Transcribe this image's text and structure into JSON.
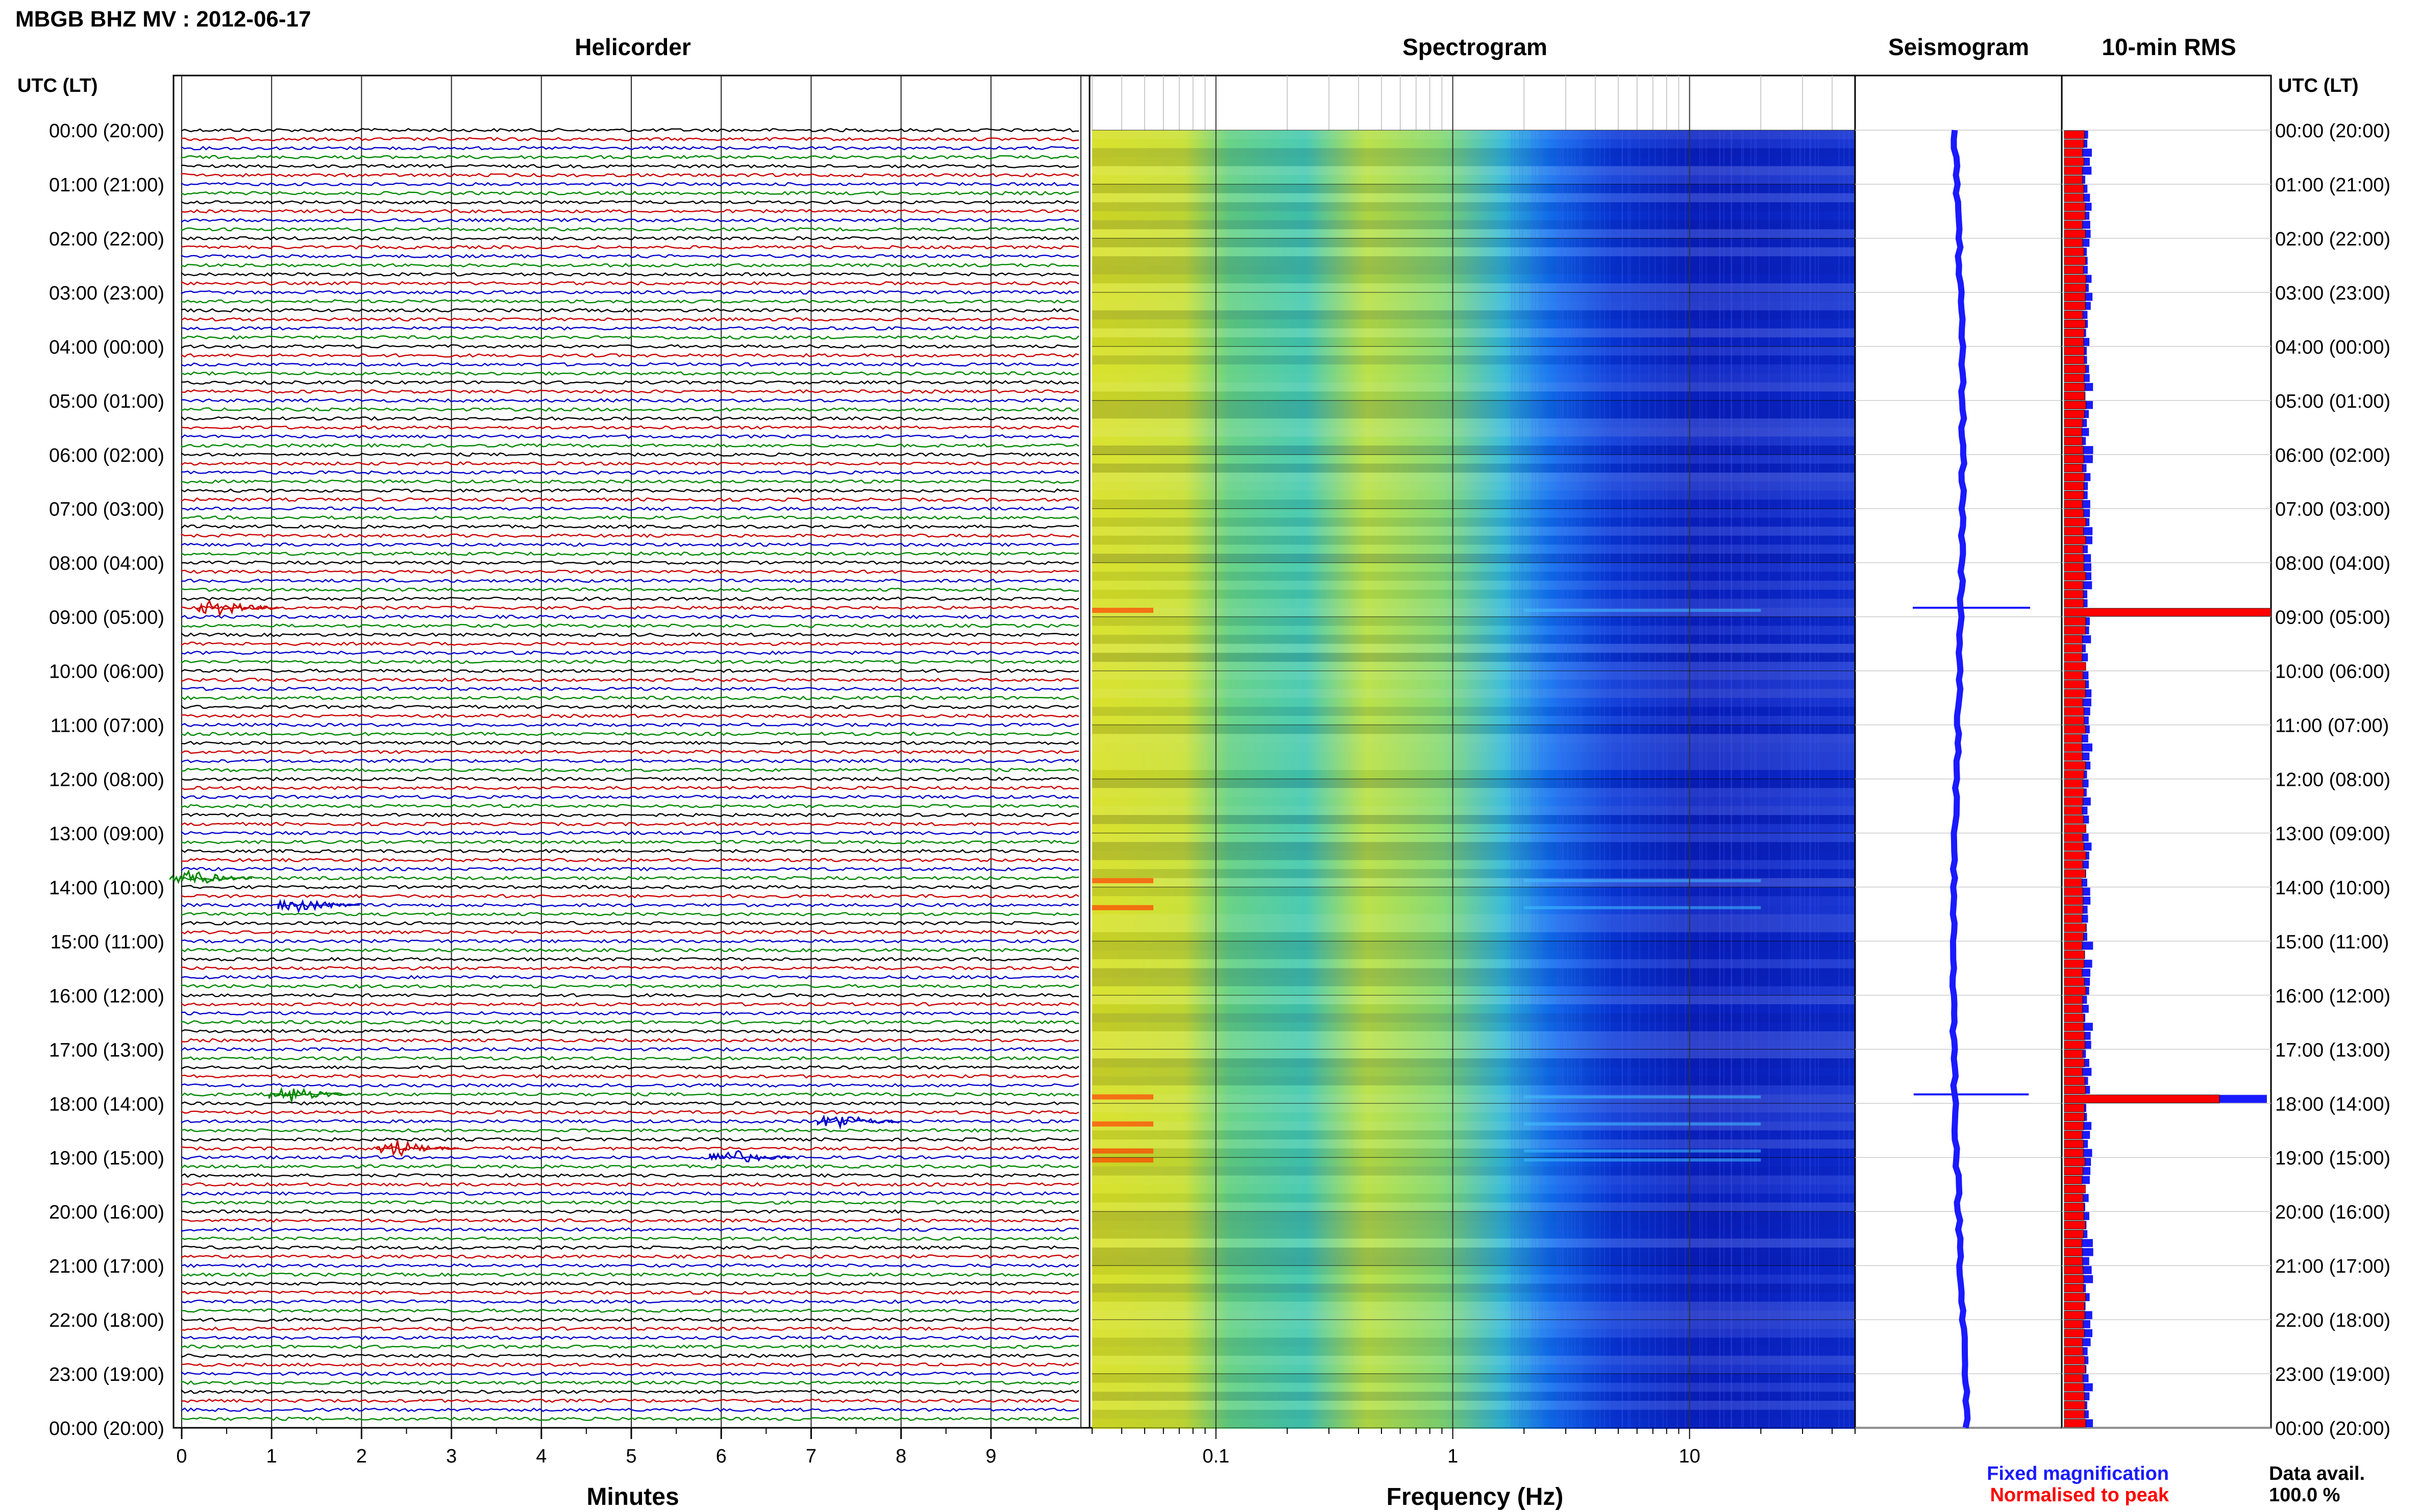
{
  "header": {
    "title": "MBGB BHZ MV : 2012-06-17",
    "utc_label": "UTC (LT)"
  },
  "panels": {
    "helicorder": "Helicorder",
    "spectrogram": "Spectrogram",
    "seismogram": "Seismogram",
    "rms": "10-min RMS"
  },
  "axes": {
    "minutes_label": "Minutes",
    "frequency_label": "Frequency (Hz)"
  },
  "legend": {
    "fixed": "Fixed magnification",
    "normalised": "Normalised to peak",
    "avail_label": "Data avail.",
    "avail_value": "100.0 %"
  },
  "colors": {
    "trace_cycle": [
      "#000000",
      "#cc0000",
      "#0000cc",
      "#008800"
    ],
    "rms_fixed": "#1a1aff",
    "rms_normalised": "#ff0000",
    "seismogram": "#1a1aff"
  },
  "chart_data": {
    "type": "heatmap",
    "date": "2012-06-17",
    "station": "MBGB BHZ MV",
    "time_labels": [
      "00:00 (20:00)",
      "01:00 (21:00)",
      "02:00 (22:00)",
      "03:00 (23:00)",
      "04:00 (00:00)",
      "05:00 (01:00)",
      "06:00 (02:00)",
      "07:00 (03:00)",
      "08:00 (04:00)",
      "09:00 (05:00)",
      "10:00 (06:00)",
      "11:00 (07:00)",
      "12:00 (08:00)",
      "13:00 (09:00)",
      "14:00 (10:00)",
      "15:00 (11:00)",
      "16:00 (12:00)",
      "17:00 (13:00)",
      "18:00 (14:00)",
      "19:00 (15:00)",
      "20:00 (16:00)",
      "21:00 (17:00)",
      "22:00 (18:00)",
      "23:00 (19:00)",
      "00:00 (20:00)"
    ],
    "minute_ticks": [
      "0",
      "1",
      "2",
      "3",
      "4",
      "5",
      "6",
      "7",
      "8",
      "9"
    ],
    "minute_range": [
      0,
      10
    ],
    "frequency_ticks": [
      "0.1",
      "1",
      "10"
    ],
    "frequency_range_hz": [
      0.03,
      50
    ],
    "frequency_scale": "log",
    "rows_per_day": 144,
    "rms_fixed_peaks": [
      {
        "time_utc": "08:50",
        "relative": 1.0
      },
      {
        "time_utc": "17:50",
        "relative": 0.98
      }
    ],
    "rms_normalised_peaks": [
      {
        "time_utc": "08:50",
        "relative": 1.0
      },
      {
        "time_utc": "17:50",
        "relative": 0.75
      }
    ],
    "events": [
      {
        "time_utc": "08:50",
        "minute": 0.4
      },
      {
        "time_utc": "13:50",
        "minute": 0.1
      },
      {
        "time_utc": "14:20",
        "minute": 1.3
      },
      {
        "time_utc": "17:50",
        "minute": 1.2
      },
      {
        "time_utc": "18:20",
        "minute": 7.3
      },
      {
        "time_utc": "18:50",
        "minute": 2.4
      },
      {
        "time_utc": "19:00",
        "minute": 6.1
      }
    ]
  }
}
